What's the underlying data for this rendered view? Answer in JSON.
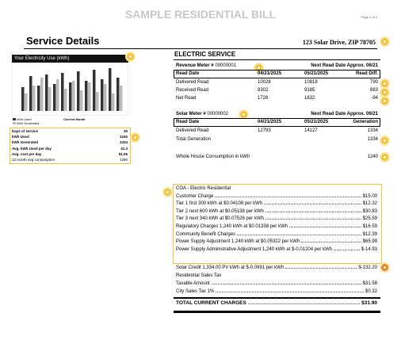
{
  "header": {
    "title": "SAMPLE RESIDENTIAL BILL",
    "page": "Page 2 of 4"
  },
  "service": {
    "title": "Service Details",
    "address": "123 Solar Drive, ZIP 78705"
  },
  "usage": {
    "title": "Your Electricity Use (kWh)",
    "legend": [
      "kWh Used",
      "kWh Generated"
    ],
    "current": "Current Month",
    "rows": [
      [
        "Days of service",
        "30"
      ],
      [
        "kWh Used",
        "1240"
      ],
      [
        "kWh Generated",
        "1334"
      ],
      [
        "Avg. kWh Used per day",
        "41.3"
      ],
      [
        "Avg. cost per day",
        "$1.06"
      ],
      [
        "12 month avg consumption",
        "1280"
      ]
    ]
  },
  "electric": {
    "title": "ELECTRIC SERVICE",
    "meters": [
      {
        "label": "Revenue Meter #",
        "number": "00000001",
        "next": "Next Read Date Approx. 06/21",
        "header": [
          "Read Date",
          "04/21/2025",
          "05/21/2025",
          "Read Diff."
        ],
        "rows": [
          [
            "Delivered Read",
            "10028",
            "10818",
            "790"
          ],
          [
            "Received Read",
            "8302",
            "9185",
            "883"
          ],
          [
            "Net Read",
            "1726",
            "1632",
            "-94"
          ]
        ]
      },
      {
        "label": "Solar Meter #",
        "number": "00000002",
        "next": "Next Read Date Approx. 06/21",
        "header": [
          "Read Date",
          "04/21/2025",
          "05/21/2025",
          "Generation"
        ],
        "rows": [
          [
            "Delivered Read",
            "12793",
            "14127",
            "1334"
          ]
        ]
      }
    ],
    "total_generation": [
      "Total Generation",
      "1334"
    ],
    "whole_house": [
      "Whole House Consumption in kWh",
      "1240"
    ]
  },
  "charges": {
    "title": "COA - Electric Residential",
    "items": [
      [
        "Customer Charge",
        "$15.00"
      ],
      [
        "Tier 1 first 300 kWh at $0.04108 per kWh",
        "$12.32"
      ],
      [
        "Tier 2 next 600 kWh at $0.05138 per kWh",
        "$30.83"
      ],
      [
        "Tier 3 next 340 kWh at $0.07526 per kWh",
        "$25.59"
      ],
      [
        "Regulatory Charges 1,240 kWh at $0.01338 per kWh",
        "$16.59"
      ],
      [
        "Community Benefit Charges",
        "$12.39"
      ],
      [
        "Power Supply Adjustment 1,240 kWh at $0.05322 per kWh",
        "$65.99"
      ],
      [
        "Power Supply Administrative Adjustment 1,240 kWh at $-0.01204 per kWh",
        "$-14.93"
      ]
    ],
    "solar_credit": [
      "Solar Credit 1,334.00 PV kWh at $-0.0991 per kWh",
      "$-132.20"
    ],
    "tax_title": "Residential Sales Tax",
    "tax": [
      [
        "Taxable Amount",
        "$31.58"
      ],
      [
        "City Sales Tax 1%",
        "$0.32"
      ]
    ],
    "total": [
      "TOTAL CURRENT CHARGES",
      "$31.90"
    ]
  }
}
